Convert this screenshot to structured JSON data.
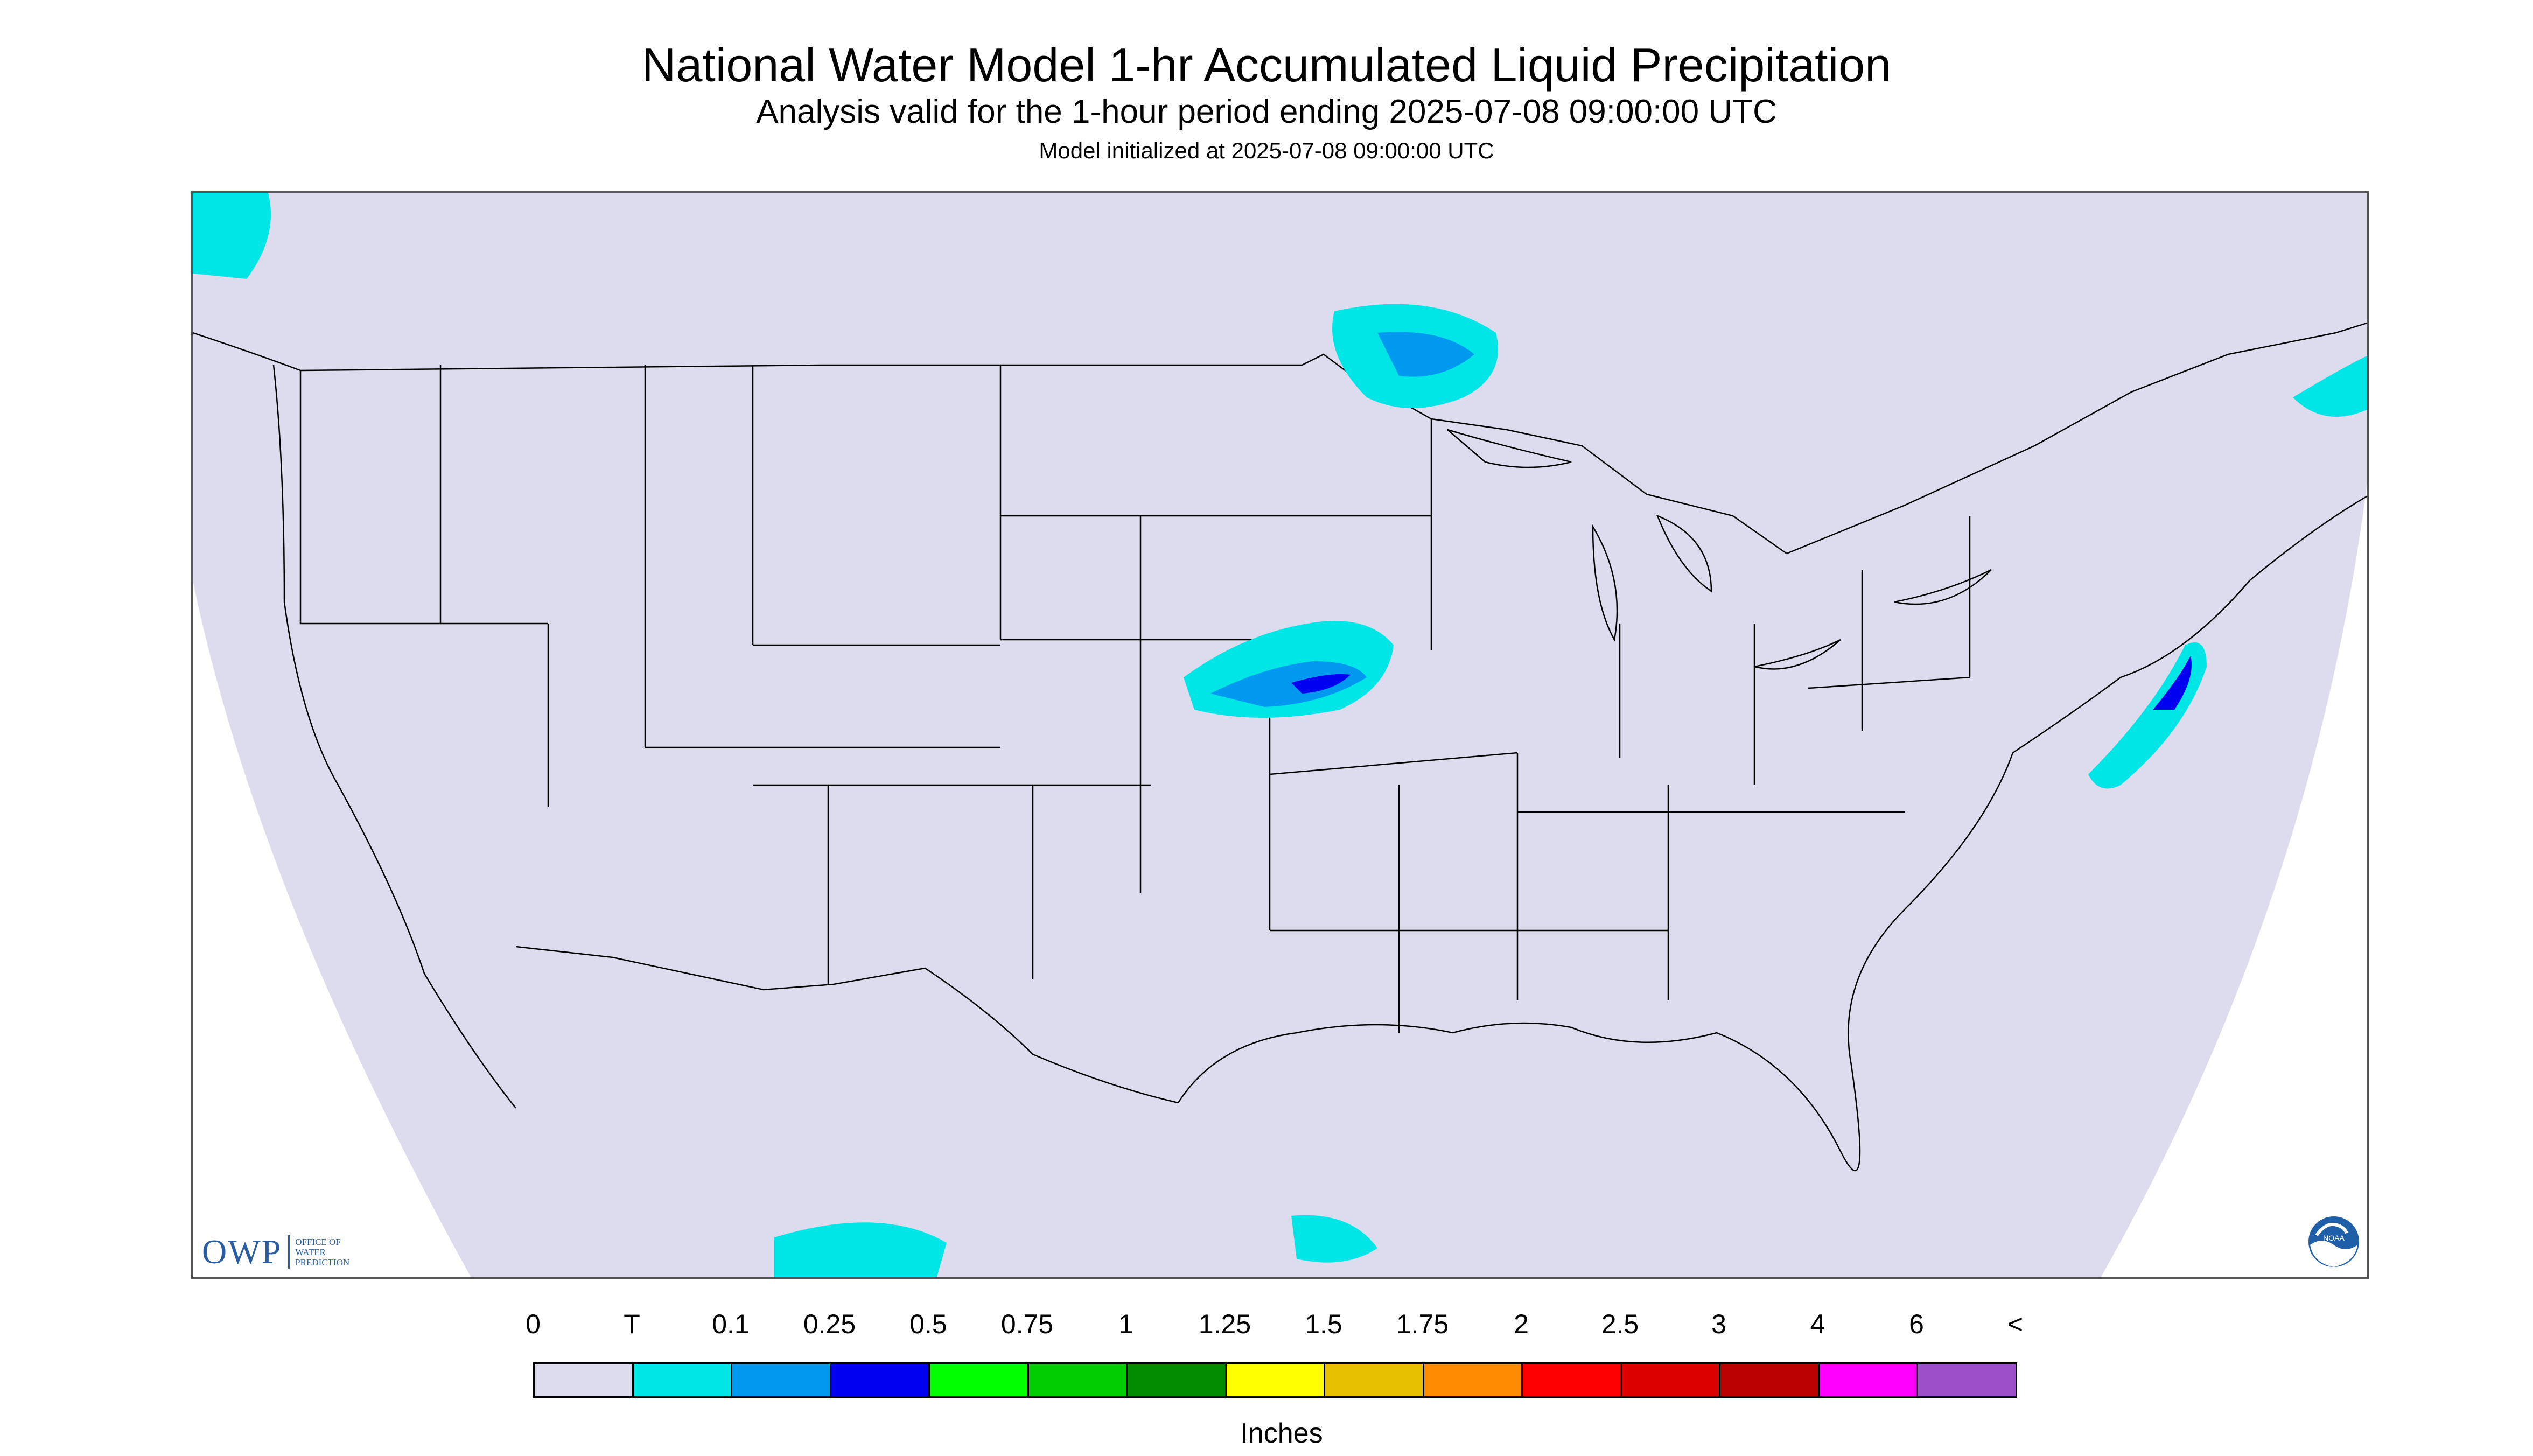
{
  "header": {
    "title": "National Water Model 1-hr Accumulated Liquid Precipitation",
    "subtitle": "Analysis valid for the 1-hour period ending 2025-07-08 09:00:00 UTC",
    "init": "Model initialized at 2025-07-08 09:00:00 UTC"
  },
  "map": {
    "background": "#dcdcee",
    "boundary_color": "#000000",
    "outside_domain_color": "#ffffff",
    "regions": [
      "Pacific Northwest",
      "Minnesota / Lake Superior",
      "Kansas / Missouri",
      "New England / Atlantic",
      "Gulf of Mexico"
    ]
  },
  "logos": {
    "owp_mark": "OWP",
    "owp_text": "OFFICE OF\nWATER\nPREDICTION",
    "noaa_text": "NOAA",
    "noaa_icon": "noaa-logo"
  },
  "legend": {
    "ticks": [
      "0",
      "T",
      "0.1",
      "0.25",
      "0.5",
      "0.75",
      "1",
      "1.25",
      "1.5",
      "1.75",
      "2",
      "2.5",
      "3",
      "4",
      "6",
      "<"
    ],
    "colors": [
      "#dcdcee",
      "#00e6e6",
      "#0099f0",
      "#0000f0",
      "#00ff00",
      "#00cd00",
      "#008b00",
      "#ffff00",
      "#e6bf00",
      "#ff8c00",
      "#ff0000",
      "#dc0000",
      "#b90000",
      "#ff00ff",
      "#9a50c8"
    ],
    "units": "Inches"
  }
}
